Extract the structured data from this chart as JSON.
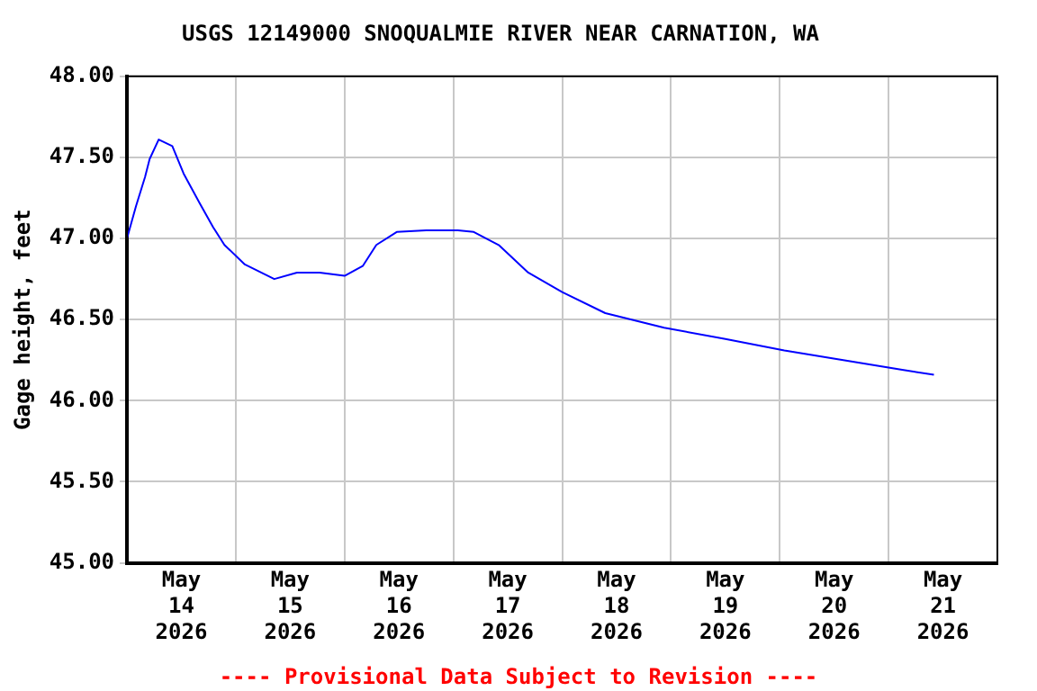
{
  "chart_data": {
    "type": "line",
    "title": "USGS 12149000 SNOQUALMIE RIVER NEAR CARNATION, WA",
    "ylabel": "Gage height, feet",
    "annotations": [
      "---- Provisional Data Subject to Revision ----"
    ],
    "series": [
      {
        "color": "#0000ff",
        "x": [
          "2026-05-14T00:00",
          "2026-05-14T02:00",
          "2026-05-14T04:00",
          "2026-05-14T05:00",
          "2026-05-14T07:00",
          "2026-05-14T10:00",
          "2026-05-14T12:30",
          "2026-05-14T16:00",
          "2026-05-14T19:00",
          "2026-05-14T21:30",
          "2026-05-15T02:00",
          "2026-05-15T08:30",
          "2026-05-15T13:30",
          "2026-05-15T18:30",
          "2026-05-16T00:00",
          "2026-05-16T04:00",
          "2026-05-16T07:00",
          "2026-05-16T11:30",
          "2026-05-16T18:00",
          "2026-05-17T01:00",
          "2026-05-17T04:30",
          "2026-05-17T10:00",
          "2026-05-17T16:30",
          "2026-05-18T00:00",
          "2026-05-18T09:30",
          "2026-05-18T22:30",
          "2026-05-19T12:00",
          "2026-05-20T01:00",
          "2026-05-20T14:00",
          "2026-05-21T03:00",
          "2026-05-21T10:00"
        ],
        "values": [
          47.0,
          47.2,
          47.38,
          47.49,
          47.61,
          47.57,
          47.4,
          47.22,
          47.07,
          46.96,
          46.84,
          46.75,
          46.79,
          46.79,
          46.77,
          46.83,
          46.96,
          47.04,
          47.05,
          47.05,
          47.04,
          46.96,
          46.79,
          46.67,
          46.54,
          46.45,
          46.38,
          46.31,
          46.25,
          46.19,
          46.16
        ]
      }
    ],
    "xlim": [
      "2026-05-14T00:00",
      "2026-05-22T00:00"
    ],
    "xticks": [
      {
        "value": "2026-05-14T12:00",
        "label": "May\n14\n2026"
      },
      {
        "value": "2026-05-15T00:00",
        "label": null
      },
      {
        "value": "2026-05-15T12:00",
        "label": "May\n15\n2026"
      },
      {
        "value": "2026-05-16T00:00",
        "label": null
      },
      {
        "value": "2026-05-16T12:00",
        "label": "May\n16\n2026"
      },
      {
        "value": "2026-05-17T00:00",
        "label": null
      },
      {
        "value": "2026-05-17T12:00",
        "label": "May\n17\n2026"
      },
      {
        "value": "2026-05-18T00:00",
        "label": null
      },
      {
        "value": "2026-05-18T12:00",
        "label": "May\n18\n2026"
      },
      {
        "value": "2026-05-19T00:00",
        "label": null
      },
      {
        "value": "2026-05-19T12:00",
        "label": "May\n19\n2026"
      },
      {
        "value": "2026-05-20T00:00",
        "label": null
      },
      {
        "value": "2026-05-20T12:00",
        "label": "May\n20\n2026"
      },
      {
        "value": "2026-05-21T00:00",
        "label": null
      },
      {
        "value": "2026-05-21T12:00",
        "label": "May\n21\n2026"
      }
    ],
    "ylim": [
      45,
      48
    ],
    "yticks": [
      {
        "value": 45,
        "label": "45.00"
      },
      {
        "value": 45.5,
        "label": "45.50"
      },
      {
        "value": 46,
        "label": "46.00"
      },
      {
        "value": 46.5,
        "label": "46.50"
      },
      {
        "value": 47,
        "label": "47.00"
      },
      {
        "value": 47.5,
        "label": "47.50"
      },
      {
        "value": 48,
        "label": "48.00"
      }
    ],
    "grid": true,
    "legend": false
  }
}
